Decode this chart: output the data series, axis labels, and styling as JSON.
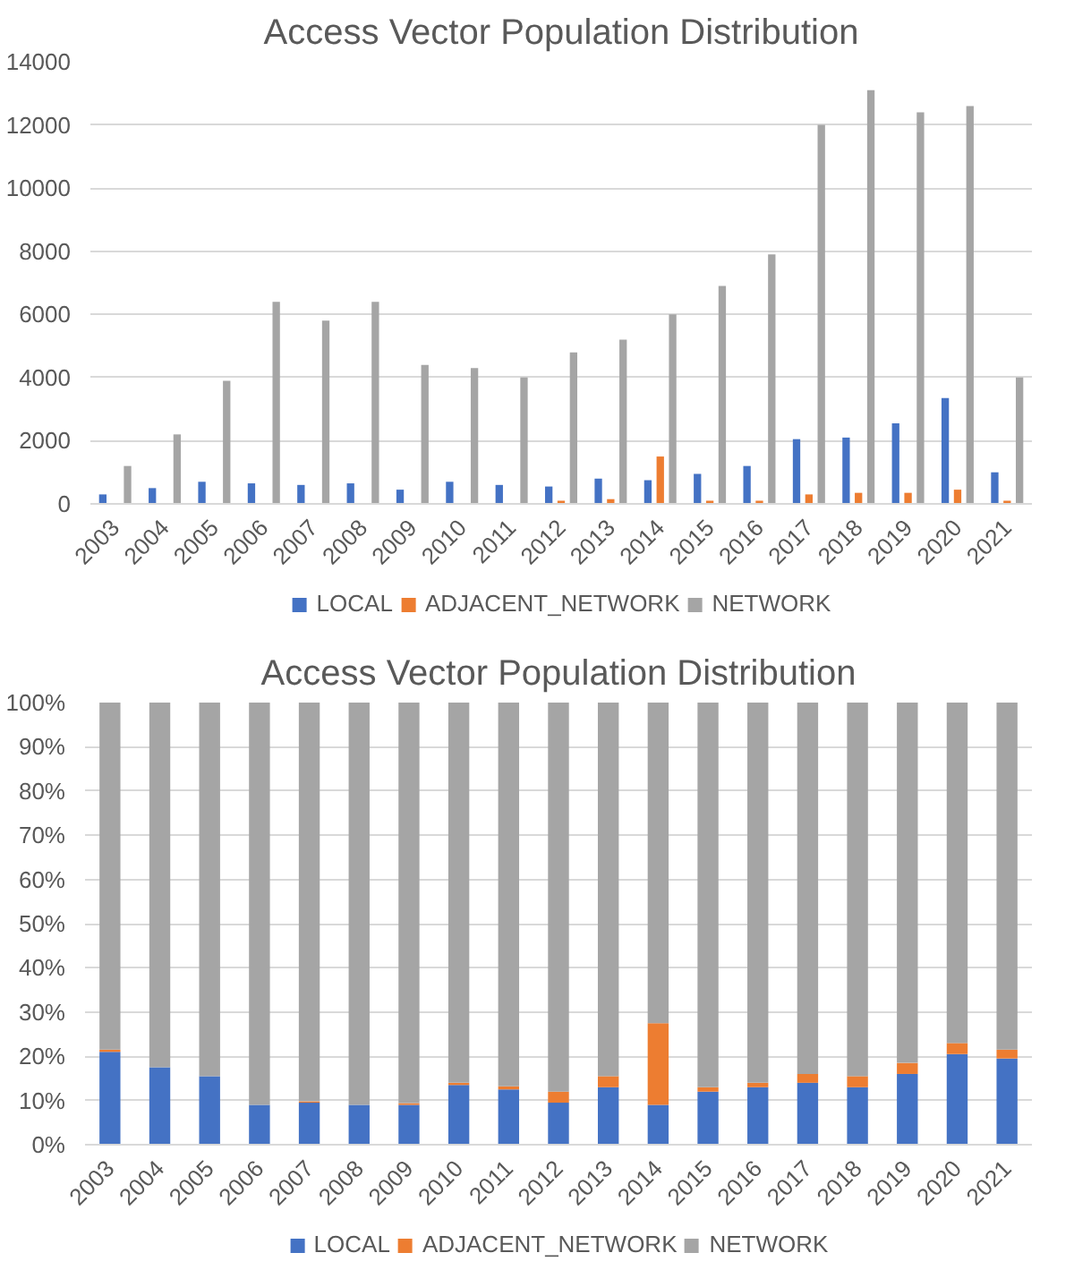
{
  "chart_data": [
    {
      "type": "bar",
      "title": "Access Vector Population Distribution",
      "categories": [
        "2003",
        "2004",
        "2005",
        "2006",
        "2007",
        "2008",
        "2009",
        "2010",
        "2011",
        "2012",
        "2013",
        "2014",
        "2015",
        "2016",
        "2017",
        "2018",
        "2019",
        "2020",
        "2021"
      ],
      "series": [
        {
          "name": "LOCAL",
          "color": "#4472c4",
          "values": [
            300,
            500,
            700,
            650,
            600,
            650,
            450,
            700,
            600,
            550,
            800,
            750,
            950,
            1200,
            2050,
            2100,
            2550,
            3350,
            1000
          ]
        },
        {
          "name": "ADJACENT_NETWORK",
          "color": "#ed7d31",
          "values": [
            0,
            0,
            0,
            0,
            0,
            0,
            0,
            0,
            0,
            100,
            150,
            1500,
            100,
            100,
            300,
            350,
            350,
            450,
            100
          ]
        },
        {
          "name": "NETWORK",
          "color": "#a5a5a5",
          "values": [
            1200,
            2200,
            3900,
            6400,
            5800,
            6400,
            4400,
            4300,
            4000,
            4800,
            5200,
            6000,
            6900,
            7900,
            12000,
            13100,
            12400,
            12600,
            4000
          ]
        }
      ],
      "ylim": [
        0,
        14000
      ],
      "yticks": [
        0,
        2000,
        4000,
        6000,
        8000,
        10000,
        12000,
        14000
      ],
      "grid": "y",
      "legend": "bottom"
    },
    {
      "type": "bar",
      "title": "Access Vector Population Distribution",
      "stacked": true,
      "categories": [
        "2003",
        "2004",
        "2005",
        "2006",
        "2007",
        "2008",
        "2009",
        "2010",
        "2011",
        "2012",
        "2013",
        "2014",
        "2015",
        "2016",
        "2017",
        "2018",
        "2019",
        "2020",
        "2021"
      ],
      "series": [
        {
          "name": "LOCAL",
          "color": "#4472c4",
          "values": [
            21,
            17.5,
            15.5,
            9,
            9.5,
            9,
            9,
            13.5,
            12.5,
            9.5,
            13,
            9,
            12,
            13,
            14,
            13,
            16,
            20.5,
            19.5
          ]
        },
        {
          "name": "ADJACENT_NETWORK",
          "color": "#ed7d31",
          "values": [
            0.5,
            0,
            0,
            0,
            0.3,
            0,
            0.4,
            0.5,
            0.7,
            2.5,
            2.5,
            18.5,
            1,
            1,
            2,
            2.5,
            2.5,
            2.5,
            2
          ]
        },
        {
          "name": "NETWORK",
          "color": "#a5a5a5",
          "values": [
            78.5,
            82.5,
            84.5,
            91,
            90.2,
            91,
            90.6,
            86,
            86.8,
            88,
            84.5,
            72.5,
            87,
            86,
            84,
            84.5,
            81.5,
            77,
            78.5
          ]
        }
      ],
      "ylim": [
        0,
        100
      ],
      "yticks": [
        {
          "value": 0,
          "label": "0%"
        },
        {
          "value": 10,
          "label": "10%"
        },
        {
          "value": 20,
          "label": "20%"
        },
        {
          "value": 30,
          "label": "30%"
        },
        {
          "value": 40,
          "label": "40%"
        },
        {
          "value": 50,
          "label": "50%"
        },
        {
          "value": 60,
          "label": "60%"
        },
        {
          "value": 70,
          "label": "70%"
        },
        {
          "value": 80,
          "label": "80%"
        },
        {
          "value": 90,
          "label": "90%"
        },
        {
          "value": 100,
          "label": "100%"
        }
      ],
      "grid": "y",
      "legend": "bottom"
    }
  ]
}
